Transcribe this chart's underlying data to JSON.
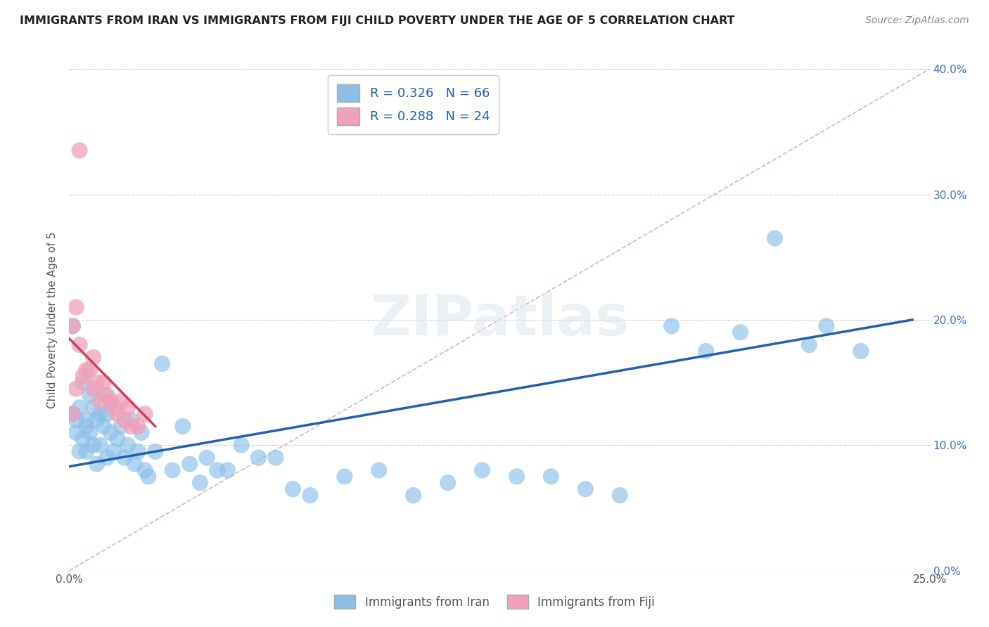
{
  "title": "IMMIGRANTS FROM IRAN VS IMMIGRANTS FROM FIJI CHILD POVERTY UNDER THE AGE OF 5 CORRELATION CHART",
  "source": "Source: ZipAtlas.com",
  "ylabel": "Child Poverty Under the Age of 5",
  "xlabel_iran": "Immigrants from Iran",
  "xlabel_fiji": "Immigrants from Fiji",
  "xlim": [
    0.0,
    0.25
  ],
  "ylim": [
    0.0,
    0.4
  ],
  "xticks": [
    0.0,
    0.05,
    0.1,
    0.15,
    0.2,
    0.25
  ],
  "yticks": [
    0.0,
    0.1,
    0.2,
    0.3,
    0.4
  ],
  "iran_R": "0.326",
  "iran_N": "66",
  "fiji_R": "0.288",
  "fiji_N": "24",
  "iran_color": "#8bbfe8",
  "fiji_color": "#f0a0b8",
  "iran_line_color": "#2060b0",
  "fiji_line_color": "#d04060",
  "trendline_diag_color": "#d0a0b0",
  "background_color": "#ffffff",
  "iran_scatter_x": [
    0.001,
    0.001,
    0.002,
    0.002,
    0.003,
    0.003,
    0.004,
    0.004,
    0.005,
    0.005,
    0.005,
    0.006,
    0.006,
    0.007,
    0.007,
    0.008,
    0.008,
    0.009,
    0.009,
    0.01,
    0.01,
    0.011,
    0.011,
    0.012,
    0.012,
    0.013,
    0.014,
    0.015,
    0.016,
    0.017,
    0.018,
    0.019,
    0.02,
    0.021,
    0.022,
    0.023,
    0.025,
    0.027,
    0.03,
    0.033,
    0.035,
    0.038,
    0.04,
    0.043,
    0.046,
    0.05,
    0.055,
    0.06,
    0.065,
    0.07,
    0.08,
    0.09,
    0.1,
    0.11,
    0.12,
    0.13,
    0.14,
    0.15,
    0.16,
    0.175,
    0.185,
    0.195,
    0.205,
    0.215,
    0.22,
    0.23
  ],
  "iran_scatter_y": [
    0.195,
    0.125,
    0.12,
    0.11,
    0.095,
    0.13,
    0.105,
    0.15,
    0.115,
    0.095,
    0.12,
    0.11,
    0.14,
    0.1,
    0.13,
    0.085,
    0.12,
    0.125,
    0.1,
    0.115,
    0.14,
    0.09,
    0.125,
    0.11,
    0.135,
    0.095,
    0.105,
    0.115,
    0.09,
    0.1,
    0.12,
    0.085,
    0.095,
    0.11,
    0.08,
    0.075,
    0.095,
    0.165,
    0.08,
    0.115,
    0.085,
    0.07,
    0.09,
    0.08,
    0.08,
    0.1,
    0.09,
    0.09,
    0.065,
    0.06,
    0.075,
    0.08,
    0.06,
    0.07,
    0.08,
    0.075,
    0.075,
    0.065,
    0.06,
    0.195,
    0.175,
    0.19,
    0.265,
    0.18,
    0.195,
    0.175
  ],
  "fiji_scatter_x": [
    0.001,
    0.001,
    0.002,
    0.002,
    0.003,
    0.003,
    0.004,
    0.005,
    0.006,
    0.007,
    0.007,
    0.008,
    0.009,
    0.01,
    0.011,
    0.012,
    0.013,
    0.014,
    0.015,
    0.016,
    0.017,
    0.018,
    0.02,
    0.022
  ],
  "fiji_scatter_y": [
    0.195,
    0.125,
    0.21,
    0.145,
    0.335,
    0.18,
    0.155,
    0.16,
    0.16,
    0.145,
    0.17,
    0.15,
    0.135,
    0.15,
    0.14,
    0.135,
    0.13,
    0.125,
    0.135,
    0.12,
    0.13,
    0.115,
    0.115,
    0.125
  ],
  "iran_trend_x": [
    0.0,
    0.245
  ],
  "iran_trend_y": [
    0.083,
    0.2
  ],
  "fiji_trend_x": [
    0.0,
    0.025
  ],
  "fiji_trend_y": [
    0.185,
    0.115
  ]
}
